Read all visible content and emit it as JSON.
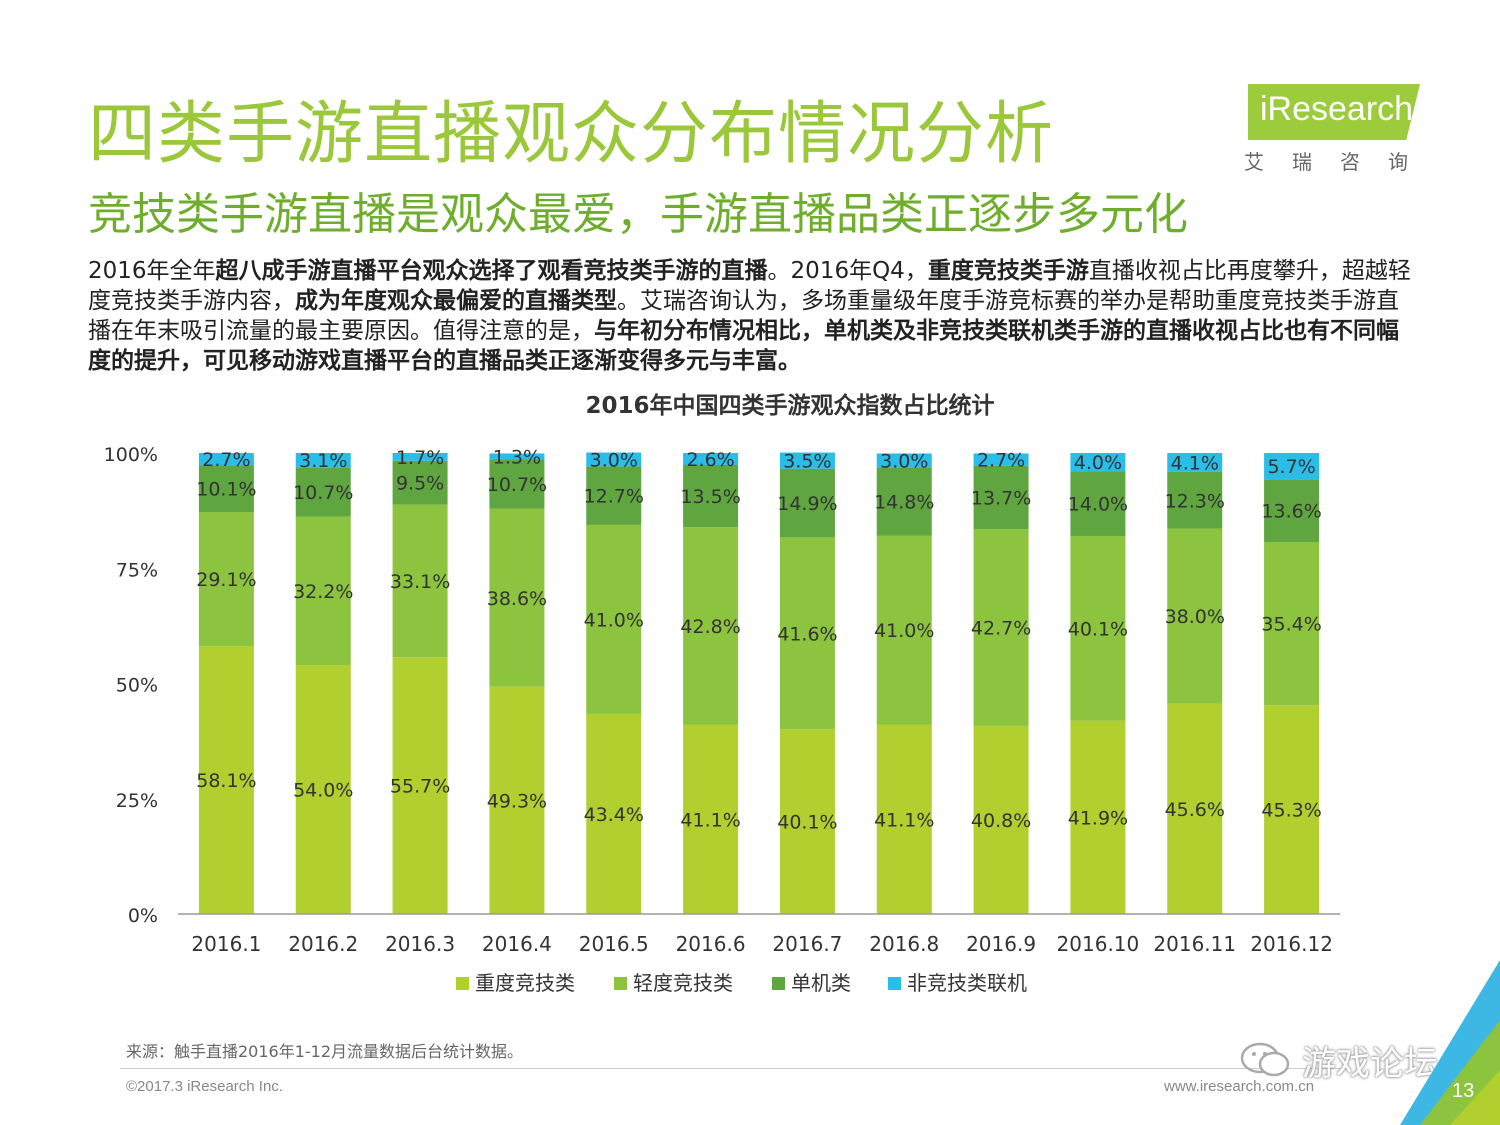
{
  "title": "四类手游直播观众分布情况分析",
  "subtitle": "竞技类手游直播是观众最爱，手游直播品类正逐步多元化",
  "logo": {
    "word": "iResearch",
    "sub": "艾瑞咨询"
  },
  "description": {
    "p1": "2016年全年",
    "b1": "超八成手游直播平台观众选择了观看竞技类手游的直播",
    "p2": "。2016年Q4，",
    "b2": "重度竞技类手游",
    "p3": "直播收视占比再度攀升，超越轻度竞技类手游内容，",
    "b3": "成为年度观众最偏爱的直播类型",
    "p4": "。艾瑞咨询认为，多场重量级年度手游竞标赛的举办是帮助重度竞技类手游直播在年末吸引流量的最主要原因。值得注意的是，",
    "b4": "与年初分布情况相比，单机类及非竞技类联机类手游的直播收视占比也有不同幅度的提升，可见移动游戏直播平台的直播品类正逐渐变得多元与丰富。"
  },
  "chart_data": {
    "type": "bar",
    "stacked": true,
    "title": "2016年中国四类手游观众指数占比统计",
    "categories": [
      "2016.1",
      "2016.2",
      "2016.3",
      "2016.4",
      "2016.5",
      "2016.6",
      "2016.7",
      "2016.8",
      "2016.9",
      "2016.10",
      "2016.11",
      "2016.12"
    ],
    "series": [
      {
        "name": "重度竞技类",
        "color": "#b2cf30",
        "values": [
          58.1,
          54.0,
          55.7,
          49.3,
          43.4,
          41.1,
          40.1,
          41.1,
          40.8,
          41.9,
          45.6,
          45.3
        ]
      },
      {
        "name": "轻度竞技类",
        "color": "#8cc43f",
        "values": [
          29.1,
          32.2,
          33.1,
          38.6,
          41.0,
          42.8,
          41.6,
          41.0,
          42.7,
          40.1,
          38.0,
          35.4
        ]
      },
      {
        "name": "单机类",
        "color": "#5fa640",
        "values": [
          10.1,
          10.7,
          9.5,
          10.7,
          12.7,
          13.5,
          14.9,
          14.8,
          13.7,
          14.0,
          12.3,
          13.6
        ]
      },
      {
        "name": "非竞技类联机",
        "color": "#29bde8",
        "values": [
          2.7,
          3.1,
          1.7,
          1.3,
          3.0,
          2.6,
          3.5,
          3.0,
          2.7,
          4.0,
          4.1,
          5.7
        ]
      }
    ],
    "y_ticks": [
      "0%",
      "25%",
      "50%",
      "75%",
      "100%"
    ],
    "y_tick_values": [
      0,
      25,
      50,
      75,
      100
    ],
    "ylim": [
      0,
      100
    ],
    "legend_position": "bottom"
  },
  "source": "来源：触手直播2016年1-12月流量数据后台统计数据。",
  "copyright": "©2017.3 iResearch Inc.",
  "website": "www.iresearch.com.cn",
  "watermark": "游戏论坛",
  "page_number": "13",
  "colors": {
    "title": "#9bc83a",
    "subtitle": "#6fae2c",
    "accent_blue": "#29bde8"
  }
}
